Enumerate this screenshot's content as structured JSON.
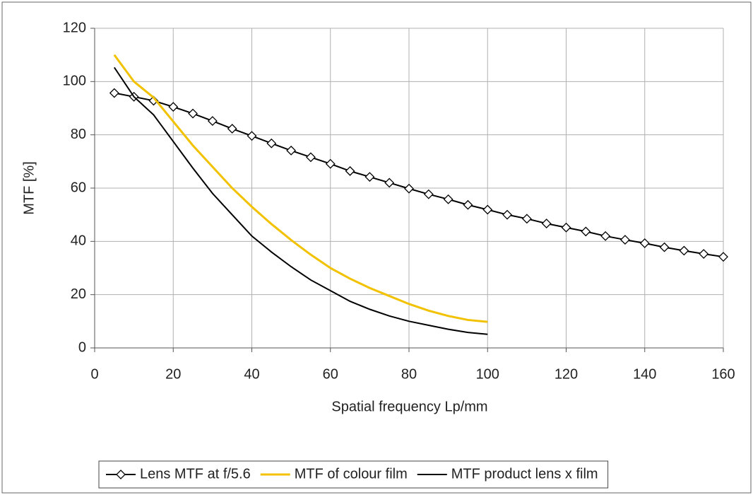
{
  "chart_data": {
    "type": "line",
    "x_label": "Spatial frequency  Lp/mm",
    "y_label": "MTF  [%]",
    "xlim": [
      0,
      160
    ],
    "xticks": [
      0,
      20,
      40,
      60,
      80,
      100,
      120,
      140,
      160
    ],
    "ylim": [
      0,
      120
    ],
    "yticks": [
      0,
      20,
      40,
      60,
      80,
      100,
      120
    ],
    "grid": true,
    "legend": "bottom",
    "series": [
      {
        "name": "Lens MTF at f/5.6",
        "color": "#000000",
        "marker": "diamond",
        "x": [
          5,
          10,
          15,
          20,
          25,
          30,
          35,
          40,
          45,
          50,
          55,
          60,
          65,
          70,
          75,
          80,
          85,
          90,
          95,
          100,
          105,
          110,
          115,
          120,
          125,
          130,
          135,
          140,
          145,
          150,
          155,
          160
        ],
        "values": [
          95.7,
          94.3,
          92.8,
          90.5,
          88,
          85.2,
          82.3,
          79.6,
          76.8,
          74.1,
          71.6,
          69.1,
          66.4,
          64.2,
          62,
          59.8,
          57.7,
          55.8,
          53.7,
          51.9,
          50,
          48.5,
          46.7,
          45.2,
          43.7,
          42,
          40.6,
          39.3,
          37.8,
          36.5,
          35.3,
          34.2
        ]
      },
      {
        "name": "MTF of colour film",
        "color": "#f2c200",
        "x": [
          5,
          10,
          15,
          20,
          25,
          30,
          35,
          40,
          45,
          50,
          55,
          60,
          65,
          70,
          75,
          80,
          85,
          90,
          95,
          100
        ],
        "values": [
          110,
          100,
          94,
          85,
          76,
          68,
          60,
          53,
          46.5,
          40.5,
          35,
          30,
          26,
          22.5,
          19.5,
          16.5,
          14,
          12,
          10.5,
          9.8
        ]
      },
      {
        "name": "MTF product lens x film",
        "color": "#000000",
        "x": [
          5,
          10,
          15,
          20,
          25,
          30,
          35,
          40,
          45,
          50,
          55,
          60,
          65,
          70,
          75,
          80,
          85,
          90,
          95,
          100
        ],
        "values": [
          105.3,
          94.3,
          87.5,
          77.5,
          67.5,
          58,
          50,
          42,
          36,
          30.5,
          25.5,
          21.5,
          17.5,
          14.5,
          12,
          10,
          8.5,
          7,
          5.8,
          5.1
        ]
      }
    ]
  }
}
